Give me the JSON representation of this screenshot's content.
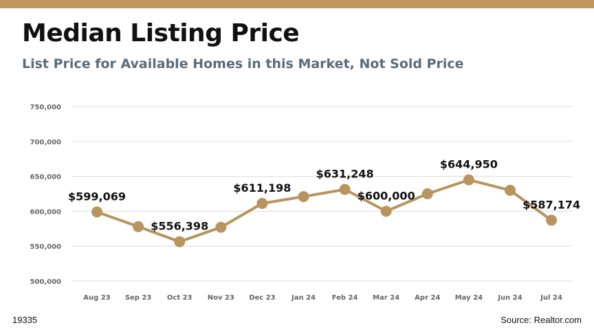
{
  "colors": {
    "accent": "#c0985a",
    "line": "#b8955f",
    "grid": "#dcdcdc",
    "tick_text": "#666666"
  },
  "header": {
    "title": "Median Listing Price",
    "subtitle": "List Price for Available Homes in this Market, Not Sold Price"
  },
  "footer": {
    "code": "19335",
    "source": "Source: Realtor.com"
  },
  "chart_data": {
    "type": "line",
    "categories": [
      "Aug 23",
      "Sep 23",
      "Oct 23",
      "Nov 23",
      "Dec 23",
      "Jan 24",
      "Feb 24",
      "Mar 24",
      "Apr 24",
      "May 24",
      "Jun 24",
      "Jul 24"
    ],
    "series": [
      {
        "values": [
          599069,
          578000,
          556398,
          577000,
          611198,
          621000,
          631248,
          600000,
          625000,
          644950,
          630000,
          587174
        ]
      }
    ],
    "data_labels": [
      "$599,069",
      "",
      "$556,398",
      "",
      "$611,198",
      "",
      "$631,248",
      "$600,000",
      "",
      "$644,950",
      "",
      "$587,174"
    ],
    "yticks": [
      500000,
      550000,
      600000,
      650000,
      700000,
      750000
    ],
    "ytick_labels": [
      "500,000",
      "550,000",
      "600,000",
      "650,000",
      "700,000",
      "750,000"
    ],
    "ylim": [
      500000,
      750000
    ],
    "grid": true,
    "legend": "none"
  }
}
